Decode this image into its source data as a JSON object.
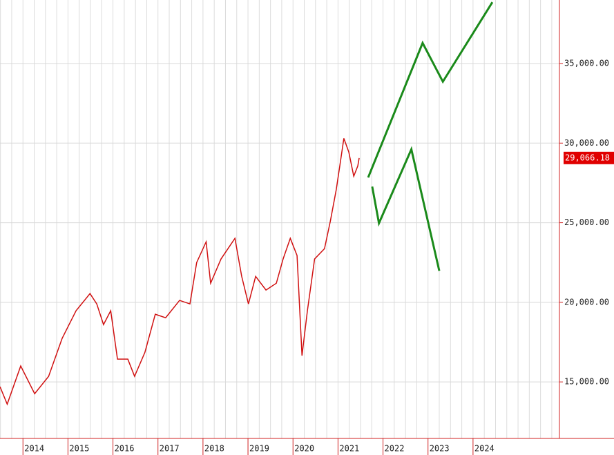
{
  "chart_data": {
    "type": "line",
    "xlim": [
      2013.49,
      2025.92
    ],
    "ylim": [
      11450,
      38990
    ],
    "xticks": [
      2014,
      2015,
      2016,
      2017,
      2018,
      2019,
      2020,
      2021,
      2022,
      2023,
      2024
    ],
    "yticks": [
      {
        "value": 15000,
        "label": "15,000.00"
      },
      {
        "value": 20000,
        "label": "20,000.00"
      },
      {
        "value": 25000,
        "label": "25,000.00"
      },
      {
        "value": 30000,
        "label": "30,000.00"
      },
      {
        "value": 35000,
        "label": "35,000.00"
      }
    ],
    "grid": true,
    "last_price": {
      "value": 29066.18,
      "label": "29,066.18"
    },
    "series": [
      {
        "color": "#d01010",
        "width": 1.5,
        "x": [
          2013.49,
          2013.65,
          2013.95,
          2014.26,
          2014.57,
          2014.87,
          2015.18,
          2015.49,
          2015.64,
          2015.79,
          2015.95,
          2016.1,
          2016.33,
          2016.48,
          2016.71,
          2016.94,
          2017.17,
          2017.48,
          2017.71,
          2017.86,
          2018.07,
          2018.17,
          2018.4,
          2018.71,
          2018.86,
          2019.01,
          2019.17,
          2019.4,
          2019.63,
          2019.78,
          2019.94,
          2020.09,
          2020.2,
          2020.32,
          2020.48,
          2020.7,
          2020.83,
          2020.96,
          2021.04,
          2021.13,
          2021.24,
          2021.35,
          2021.44,
          2021.47
        ],
        "values": [
          14700,
          13600,
          16000,
          14260,
          15350,
          17730,
          19470,
          20550,
          19900,
          18600,
          19470,
          16430,
          16430,
          15350,
          16860,
          19250,
          19030,
          20120,
          19900,
          22500,
          23800,
          21200,
          22720,
          24020,
          21630,
          19900,
          21630,
          20770,
          21200,
          22720,
          24020,
          22940,
          16650,
          19470,
          22720,
          23370,
          25100,
          27060,
          28570,
          30300,
          29440,
          27920,
          28570,
          29066.18
        ]
      },
      {
        "color": "#1a8a1a",
        "width": 3,
        "x": [
          2021.67,
          2022.88,
          2023.33,
          2024.43
        ],
        "values": [
          27840,
          36290,
          33860,
          38850
        ]
      },
      {
        "color": "#1a8a1a",
        "width": 3,
        "x": [
          2021.76,
          2021.91,
          2022.63,
          2023.25
        ],
        "values": [
          27270,
          24970,
          29610,
          21980
        ]
      }
    ]
  }
}
